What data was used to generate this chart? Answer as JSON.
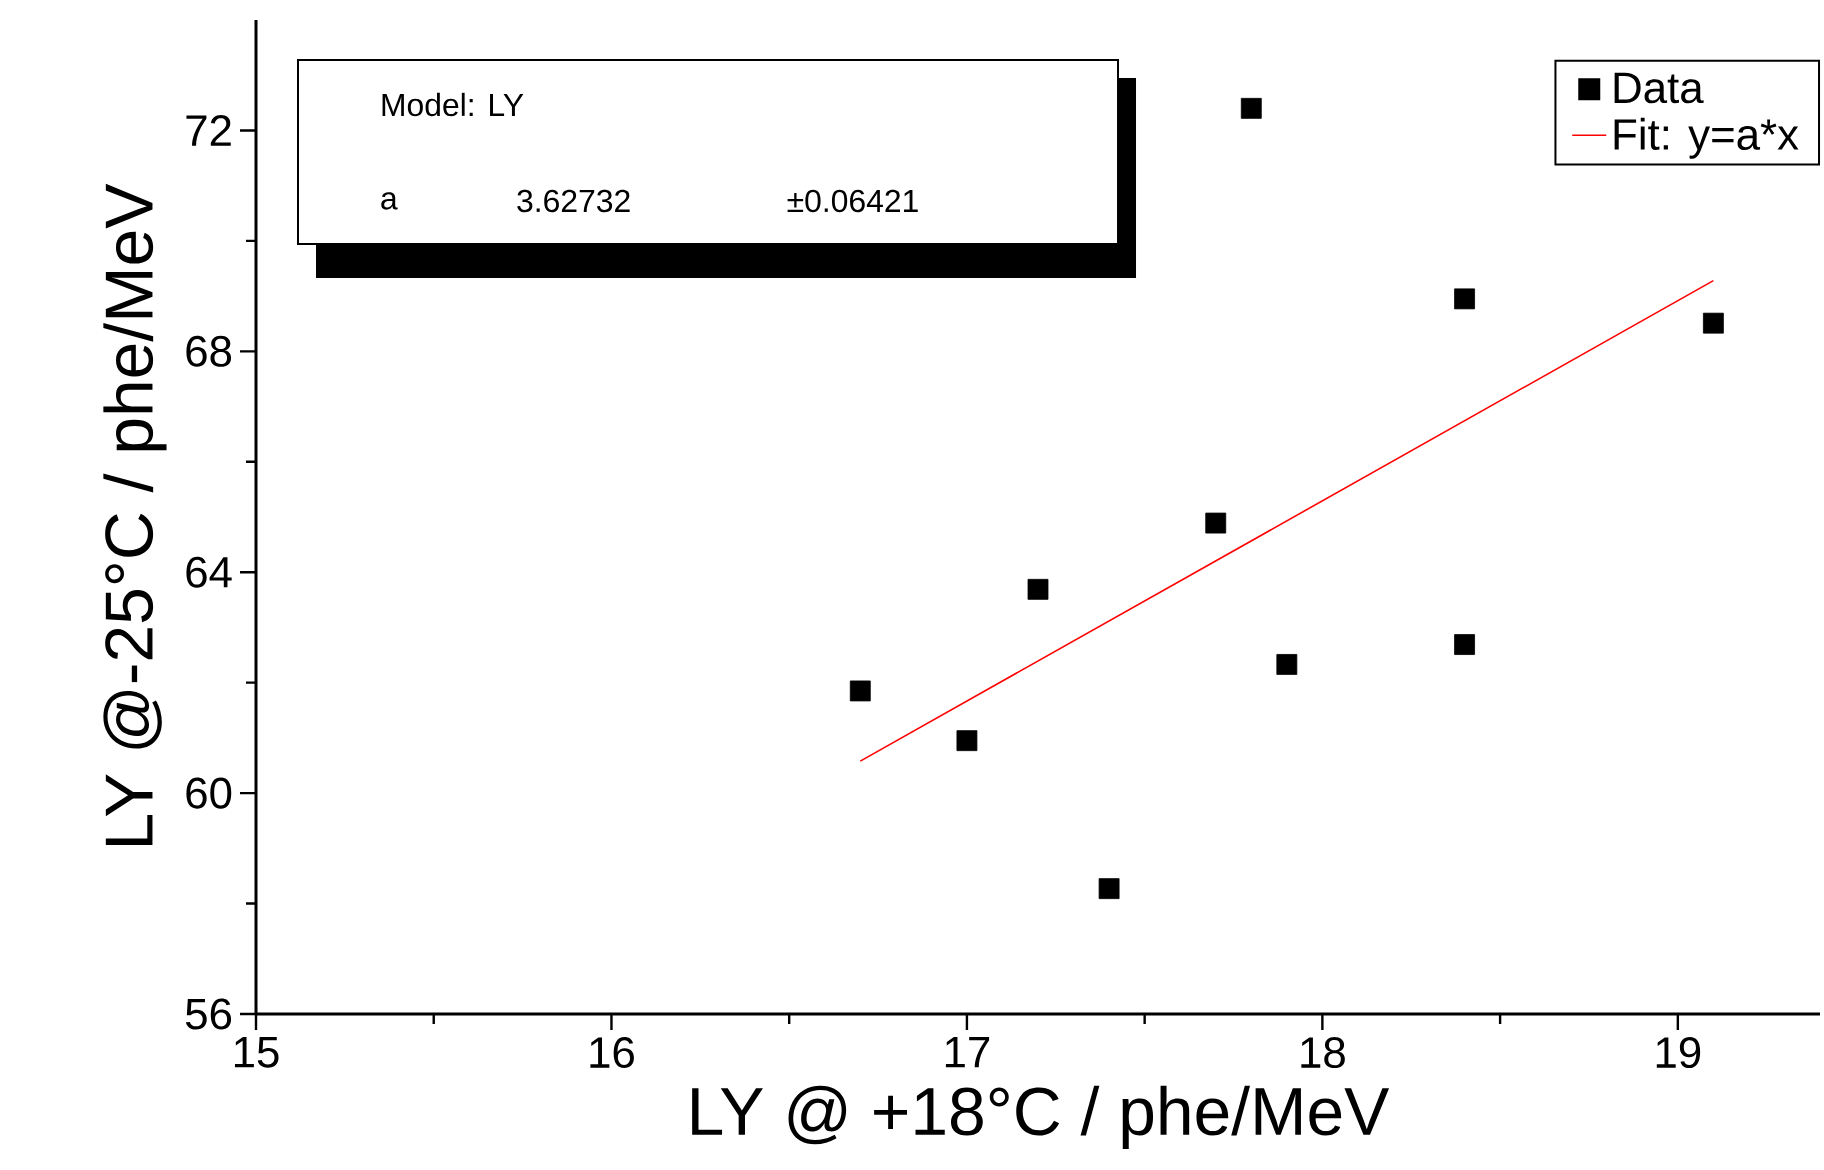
{
  "chart_data": {
    "type": "scatter",
    "xlabel": "LY @ +18°C  /  phe/MeV",
    "ylabel": "LY @-25°C  /  phe/MeV",
    "xlim": [
      15,
      19.4
    ],
    "ylim": [
      56,
      74
    ],
    "xticks": [
      15,
      16,
      17,
      18,
      19
    ],
    "yticks": [
      56,
      60,
      64,
      68,
      72
    ],
    "marker": "square",
    "legend": "top right",
    "annotations": [
      "Model: LY",
      "a",
      "3.62732",
      "±0.06421"
    ],
    "series": [
      {
        "name": "Data",
        "color": "#000000",
        "x": [
          16.7,
          17.0,
          17.2,
          17.4,
          17.7,
          17.8,
          17.9,
          18.4,
          18.4,
          19.1
        ],
        "values": [
          61.85,
          60.95,
          63.69,
          58.27,
          64.89,
          72.4,
          62.33,
          68.95,
          62.69,
          68.51
        ]
      },
      {
        "name": "Fit: y=a*x",
        "type": "line",
        "marker": "none",
        "color": "#ff0000",
        "x": [
          16.7,
          19.1
        ],
        "values": [
          60.58,
          69.28
        ]
      }
    ]
  }
}
